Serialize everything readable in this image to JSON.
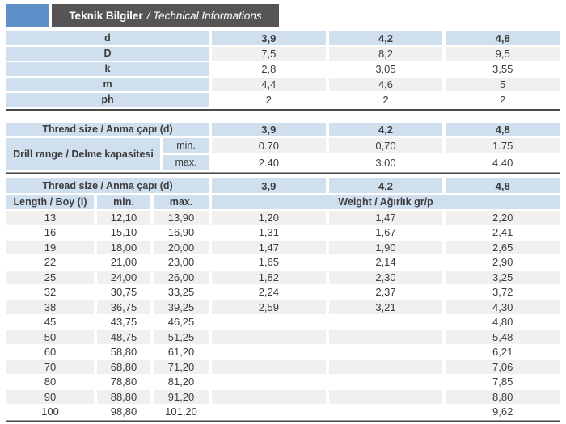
{
  "colors": {
    "accent_blue": "#5f90ca",
    "title_bar_bg": "#575456",
    "title_text": "#ffffff",
    "cell_blue": "#cfdfee",
    "row_stripe": "#f1f0ee",
    "rule_dark": "#4a4a4a",
    "text": "#3c3c3c"
  },
  "header": {
    "title_bold": "Teknik Bilgiler",
    "title_italic": "/ Technical Informations"
  },
  "dimensions_table": {
    "rows": [
      {
        "label": "d",
        "values": [
          "3,9",
          "4,2",
          "4,8"
        ]
      },
      {
        "label": "D",
        "values": [
          "7,5",
          "8,2",
          "9,5"
        ]
      },
      {
        "label": "k",
        "values": [
          "2,8",
          "3,05",
          "3,55"
        ]
      },
      {
        "label": "m",
        "values": [
          "4,4",
          "4,6",
          "5"
        ]
      },
      {
        "label": "ph",
        "values": [
          "2",
          "2",
          "2"
        ]
      }
    ]
  },
  "drill_table": {
    "header_label": "Thread size / Anma çapı (d)",
    "columns": [
      "3,9",
      "4,2",
      "4,8"
    ],
    "row_label": "Drill range / Delme kapasitesi",
    "rows": [
      {
        "bound": "min.",
        "values": [
          "0.70",
          "0,70",
          "1.75"
        ]
      },
      {
        "bound": "max.",
        "values": [
          "2.40",
          "3.00",
          "4.40"
        ]
      }
    ]
  },
  "length_table": {
    "header_label": "Thread size / Anma çapı (d)",
    "columns": [
      "3,9",
      "4,2",
      "4,8"
    ],
    "length_header": "Length / Boy (I)",
    "min_header": "min.",
    "max_header": "max.",
    "weight_header": "Weight / Ağırlık gr/p",
    "rows": [
      {
        "length": "13",
        "min": "12,10",
        "max": "13,90",
        "weights": [
          "1,20",
          "1,47",
          "2,20"
        ]
      },
      {
        "length": "16",
        "min": "15,10",
        "max": "16,90",
        "weights": [
          "1,31",
          "1,67",
          "2,41"
        ]
      },
      {
        "length": "19",
        "min": "18,00",
        "max": "20,00",
        "weights": [
          "1,47",
          "1,90",
          "2,65"
        ]
      },
      {
        "length": "22",
        "min": "21,00",
        "max": "23,00",
        "weights": [
          "1,65",
          "2,14",
          "2,90"
        ]
      },
      {
        "length": "25",
        "min": "24,00",
        "max": "26,00",
        "weights": [
          "1,82",
          "2,30",
          "3,25"
        ]
      },
      {
        "length": "32",
        "min": "30,75",
        "max": "33,25",
        "weights": [
          "2,24",
          "2,37",
          "3,72"
        ]
      },
      {
        "length": "38",
        "min": "36,75",
        "max": "39,25",
        "weights": [
          "2,59",
          "3,21",
          "4,30"
        ]
      },
      {
        "length": "45",
        "min": "43,75",
        "max": "46,25",
        "weights": [
          "",
          "",
          "4,80"
        ]
      },
      {
        "length": "50",
        "min": "48,75",
        "max": "51,25",
        "weights": [
          "",
          "",
          "5,48"
        ]
      },
      {
        "length": "60",
        "min": "58,80",
        "max": "61,20",
        "weights": [
          "",
          "",
          "6,21"
        ]
      },
      {
        "length": "70",
        "min": "68,80",
        "max": "71,20",
        "weights": [
          "",
          "",
          "7,06"
        ]
      },
      {
        "length": "80",
        "min": "78,80",
        "max": "81,20",
        "weights": [
          "",
          "",
          "7,85"
        ]
      },
      {
        "length": "90",
        "min": "88,80",
        "max": "91,20",
        "weights": [
          "",
          "",
          "8,80"
        ]
      },
      {
        "length": "100",
        "min": "98,80",
        "max": "101,20",
        "weights": [
          "",
          "",
          "9,62"
        ]
      }
    ]
  }
}
